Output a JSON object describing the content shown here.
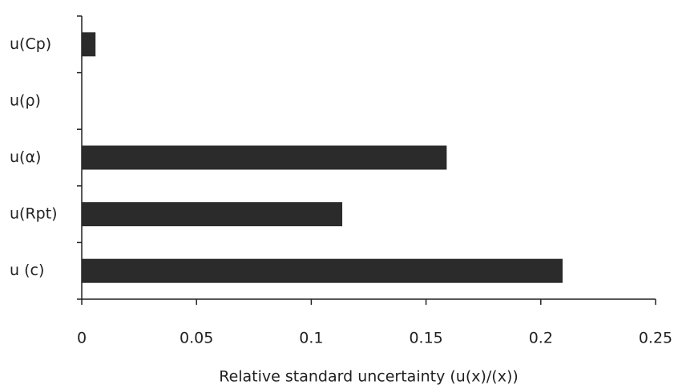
{
  "chart_data": {
    "type": "hbar",
    "categories": [
      "u(Cp)",
      "u(ρ)",
      "u(α)",
      "u(Rpt)",
      "u (c)"
    ],
    "values": [
      0.006,
      0,
      0.159,
      0.1135,
      0.2095
    ],
    "color": "#2b2b2b",
    "xlim": [
      0,
      0.25
    ],
    "xticks": [
      0,
      0.05,
      0.1,
      0.15,
      0.2,
      0.25
    ],
    "xlabel": "Relative standard uncertainty (u(x)/(x))"
  }
}
